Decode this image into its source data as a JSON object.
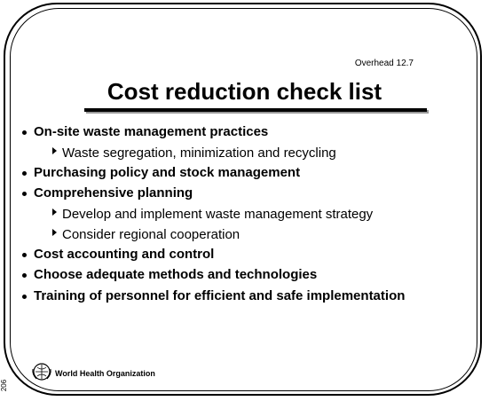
{
  "header": {
    "overhead": "Overhead 12.7",
    "title": "Cost reduction check list"
  },
  "items": [
    {
      "text": "On-site waste management practices",
      "subitems": [
        "Waste segregation, minimization and recycling"
      ]
    },
    {
      "text": "Purchasing policy and stock management",
      "subitems": []
    },
    {
      "text": "Comprehensive planning",
      "subitems": [
        "Develop and implement waste management strategy",
        "Consider regional cooperation"
      ]
    },
    {
      "text": "Cost accounting and control",
      "subitems": []
    },
    {
      "text": "Choose adequate methods and technologies",
      "subitems": []
    },
    {
      "text": "Training of personnel for efficient and safe implementation",
      "subitems": []
    }
  ],
  "footer": {
    "organization": "World Health Organization",
    "page_number": "206"
  }
}
